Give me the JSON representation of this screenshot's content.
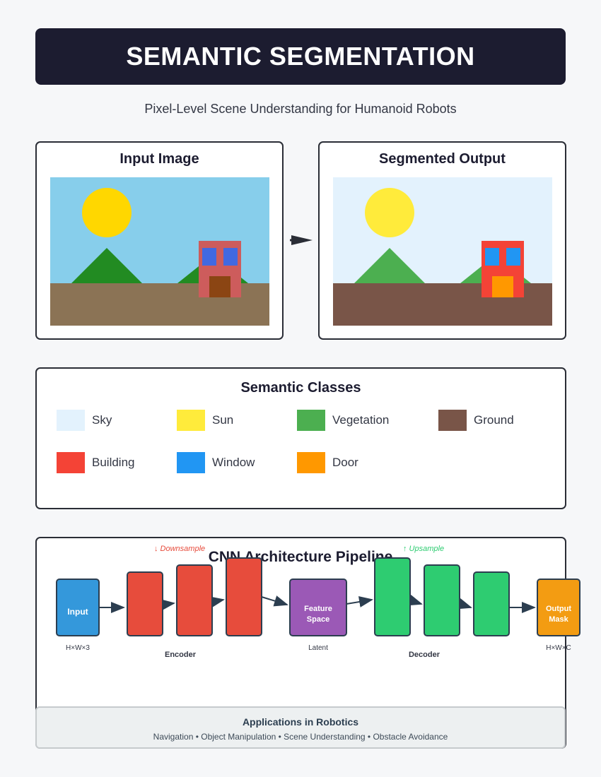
{
  "header": {
    "title": "SEMANTIC SEGMENTATION",
    "subtitle": "Pixel-Level Scene Understanding for Humanoid Robots"
  },
  "input_panel": {
    "title": "Input Image"
  },
  "output_panel": {
    "title": "Segmented Output"
  },
  "colors": {
    "input_sky": "#87ceeb",
    "input_sun": "#ffd700",
    "input_mountain": "#228b22",
    "input_ground": "#8b7355",
    "input_building": "#cd5c5c",
    "input_window": "#4169e1",
    "input_door": "#8b4513"
  },
  "legend": {
    "title": "Semantic Classes",
    "items": [
      {
        "label": "Sky",
        "color": "#e3f2fd"
      },
      {
        "label": "Sun",
        "color": "#ffeb3b"
      },
      {
        "label": "Vegetation",
        "color": "#4caf50"
      },
      {
        "label": "Ground",
        "color": "#795548"
      },
      {
        "label": "Building",
        "color": "#f44336"
      },
      {
        "label": "Window",
        "color": "#2196f3"
      },
      {
        "label": "Door",
        "color": "#ff9800"
      }
    ]
  },
  "pipeline": {
    "title": "CNN Architecture Pipeline",
    "downsample": "↓ Downsample",
    "upsample": "↑ Upsample",
    "input_block": "Input",
    "input_dims": "H×W×3",
    "encoder_label": "Encoder",
    "latent_block_line1": "Feature",
    "latent_block_line2": "Space",
    "latent_label": "Latent",
    "decoder_label": "Decoder",
    "output_block_line1": "Output",
    "output_block_line2": "Mask",
    "output_dims": "H×W×C",
    "block_colors": {
      "input": "#3498db",
      "encoder": "#e74c3c",
      "latent": "#9b59b6",
      "decoder": "#2ecc71",
      "output": "#f39c12"
    }
  },
  "applications": {
    "title": "Applications in Robotics",
    "list": "Navigation • Object Manipulation • Scene Understanding • Obstacle Avoidance"
  }
}
